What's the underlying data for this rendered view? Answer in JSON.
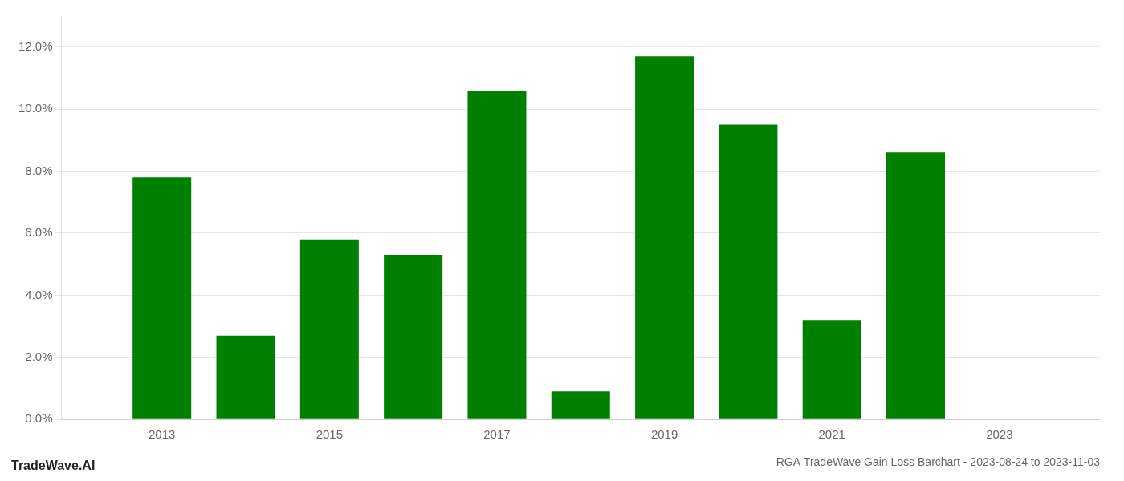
{
  "chart_data": {
    "type": "bar",
    "title": "RGA TradeWave Gain Loss Barchart - 2023-08-24 to 2023-11-03",
    "annotations": [
      "TradeWave.AI"
    ],
    "x": [
      2013,
      2014,
      2015,
      2016,
      2017,
      2018,
      2019,
      2020,
      2021,
      2022
    ],
    "values": [
      0.078,
      0.027,
      0.058,
      0.053,
      0.106,
      0.009,
      0.117,
      0.095,
      0.032,
      0.086
    ],
    "color": "#008000",
    "xlim": [
      2011.8,
      2024.2
    ],
    "xticks": [
      2013,
      2015,
      2017,
      2019,
      2021,
      2023
    ],
    "ylim": [
      0,
      0.13
    ],
    "yticks": [
      {
        "value": 0.0,
        "label": "0.0%"
      },
      {
        "value": 0.02,
        "label": "2.0%"
      },
      {
        "value": 0.04,
        "label": "4.0%"
      },
      {
        "value": 0.06,
        "label": "6.0%"
      },
      {
        "value": 0.08,
        "label": "8.0%"
      },
      {
        "value": 0.1,
        "label": "10.0%"
      },
      {
        "value": 0.12,
        "label": "12.0%"
      }
    ],
    "grid": "y"
  }
}
